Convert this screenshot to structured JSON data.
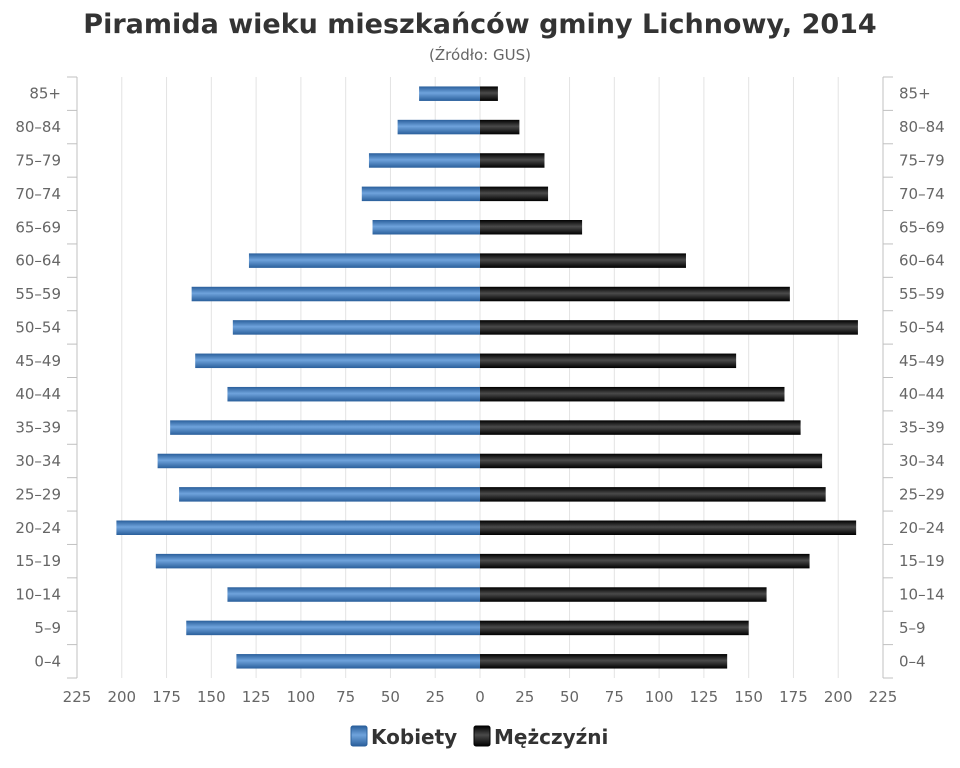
{
  "chart_data": {
    "type": "bar",
    "orientation": "horizontal",
    "subtype": "population-pyramid",
    "title": "Piramida wieku mieszkańców gminy Lichnowy, 2014",
    "subtitle": "(Źródło: GUS)",
    "categories": [
      "85+",
      "80–84",
      "75–79",
      "70–74",
      "65–69",
      "60–64",
      "55–59",
      "50–54",
      "45–49",
      "40–44",
      "35–39",
      "30–34",
      "25–29",
      "20–24",
      "15–19",
      "10–14",
      "5–9",
      "0–4"
    ],
    "x_ticks": [
      225,
      200,
      175,
      150,
      125,
      100,
      75,
      50,
      25,
      0,
      25,
      50,
      75,
      100,
      125,
      150,
      175,
      200,
      225
    ],
    "xlim": [
      -225,
      225
    ],
    "grid": true,
    "legend_position": "bottom-center",
    "series": [
      {
        "name": "Kobiety",
        "side": "left",
        "color": "#3d7cc0",
        "values": [
          34,
          46,
          62,
          66,
          60,
          129,
          161,
          138,
          159,
          141,
          173,
          180,
          168,
          203,
          181,
          141,
          164,
          136
        ]
      },
      {
        "name": "Mężczyźni",
        "side": "right",
        "color": "#1a1a1a",
        "values": [
          10,
          22,
          36,
          38,
          57,
          115,
          173,
          211,
          143,
          170,
          179,
          191,
          193,
          210,
          184,
          160,
          150,
          138
        ]
      }
    ]
  }
}
